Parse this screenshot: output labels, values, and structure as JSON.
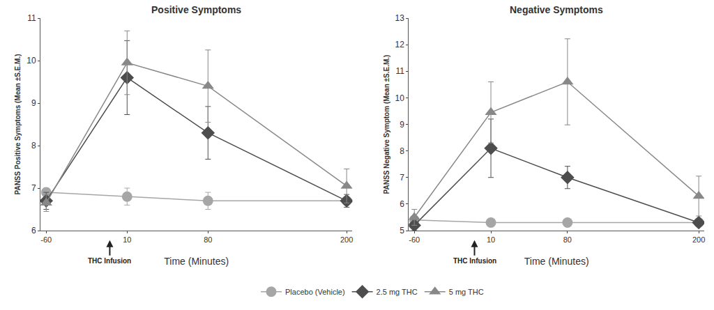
{
  "chart_data": [
    {
      "type": "line",
      "title": "Positive Symptoms",
      "x_label": "Time (Minutes)",
      "y_label": "PANSS Positive Symptoms (Mean ±S.E.M.)",
      "x": [
        -60,
        10,
        80,
        200
      ],
      "xlim": [
        -65,
        205
      ],
      "xticks": [
        -60,
        10,
        80,
        200
      ],
      "ylim": [
        6,
        11
      ],
      "yticks": [
        6,
        7,
        8,
        9,
        10,
        11
      ],
      "grid": false,
      "legend": "bottom",
      "annotations": [
        {
          "text": "THC Infusion",
          "x": -5
        }
      ],
      "series": [
        {
          "name": "Placebo (Vehicle)",
          "color": "#a6a6a6",
          "marker": "circle",
          "values": [
            6.9,
            6.8,
            6.7,
            6.7
          ],
          "error": [
            0.1,
            0.2,
            0.2,
            0.05
          ]
        },
        {
          "name": "2.5 mg THC",
          "color": "#4d4d4d",
          "marker": "diamond",
          "values": [
            6.7,
            9.6,
            8.3,
            6.7
          ],
          "error": [
            0.2,
            0.87,
            0.62,
            0.15
          ]
        },
        {
          "name": "5 mg THC",
          "color": "#888888",
          "marker": "triangle-up",
          "values": [
            6.65,
            9.95,
            9.4,
            7.05
          ],
          "error": [
            0.2,
            0.75,
            0.85,
            0.4
          ]
        }
      ]
    },
    {
      "type": "line",
      "title": "Negative Symptoms",
      "x_label": "Time (Minutes)",
      "y_label": "PANSS Negative Symptom (Mean ±S.E.M.)",
      "x": [
        -60,
        10,
        80,
        200
      ],
      "xlim": [
        -65,
        205
      ],
      "xticks": [
        -60,
        10,
        80,
        200
      ],
      "ylim": [
        5,
        13
      ],
      "yticks": [
        5,
        6,
        7,
        8,
        9,
        10,
        11,
        12,
        13
      ],
      "grid": false,
      "legend": "bottom",
      "annotations": [
        {
          "text": "THC Infusion",
          "x": -5
        }
      ],
      "series": [
        {
          "name": "Placebo (Vehicle)",
          "color": "#a6a6a6",
          "marker": "circle",
          "values": [
            5.4,
            5.3,
            5.3,
            5.3
          ],
          "error": [
            0.1,
            0.05,
            0.05,
            0.05
          ]
        },
        {
          "name": "2.5 mg THC",
          "color": "#4d4d4d",
          "marker": "diamond",
          "values": [
            5.2,
            8.1,
            7.0,
            5.3
          ],
          "error": [
            0.2,
            1.1,
            0.42,
            0.1
          ]
        },
        {
          "name": "5 mg THC",
          "color": "#888888",
          "marker": "triangle-up",
          "values": [
            5.5,
            9.45,
            10.6,
            6.3
          ],
          "error": [
            0.3,
            1.15,
            1.62,
            0.75
          ]
        }
      ]
    }
  ]
}
